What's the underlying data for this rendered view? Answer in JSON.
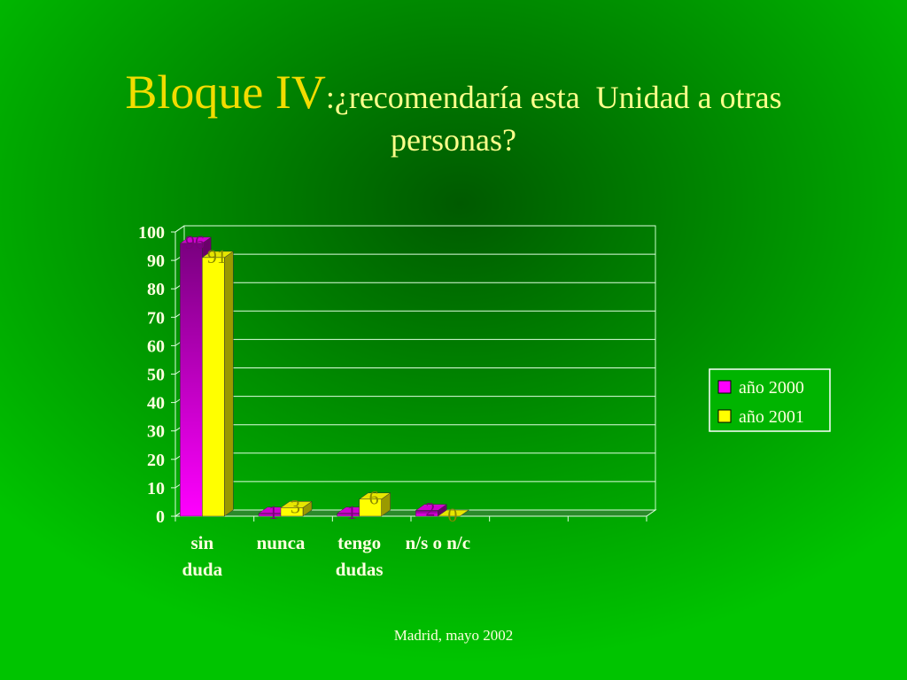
{
  "chart_data": {
    "type": "bar",
    "title": "Bloque IV",
    "subtitle": ":¿recomendaría esta  Unidad a otras personas?",
    "footer": "Madrid, mayo 2002",
    "categories": [
      "sin duda",
      "nunca",
      "tengo dudas",
      "n/s o n/c",
      null,
      null
    ],
    "series": [
      {
        "name": "año 2000",
        "color": "#ff00ff",
        "values": [
          96,
          1,
          1,
          2,
          null,
          null
        ]
      },
      {
        "name": "año 2001",
        "color": "#ffff00",
        "values": [
          91,
          3,
          6,
          0,
          null,
          null
        ]
      }
    ],
    "ylim": [
      0,
      100
    ],
    "yticks": [
      0,
      10,
      20,
      30,
      40,
      50,
      60,
      70,
      80,
      90,
      100
    ],
    "grid": true,
    "legend": "right"
  }
}
